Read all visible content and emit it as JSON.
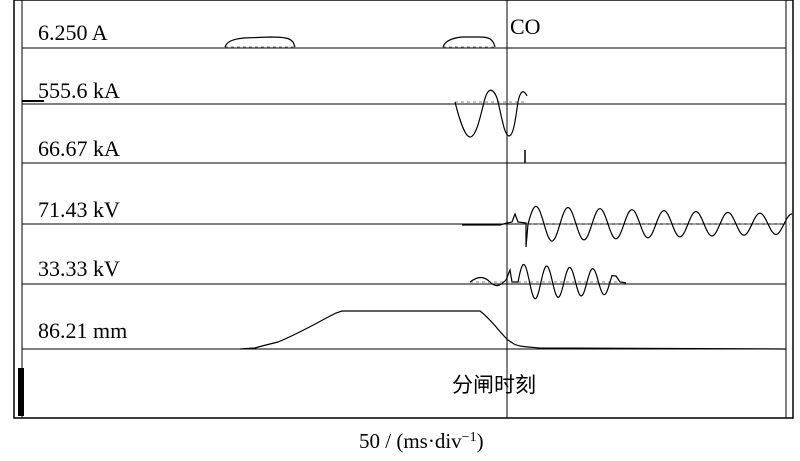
{
  "channels": [
    {
      "label": "6.250 A"
    },
    {
      "label": "555.6 kA"
    },
    {
      "label": "66.67 kA"
    },
    {
      "label": "71.43 kV"
    },
    {
      "label": "33.33 kV"
    },
    {
      "label": "86.21 mm"
    }
  ],
  "event_marker": "CO",
  "event_caption": "分闸时刻",
  "time_axis": {
    "base": "50 / (ms·div",
    "sup": "−1",
    "tail": ")"
  }
}
